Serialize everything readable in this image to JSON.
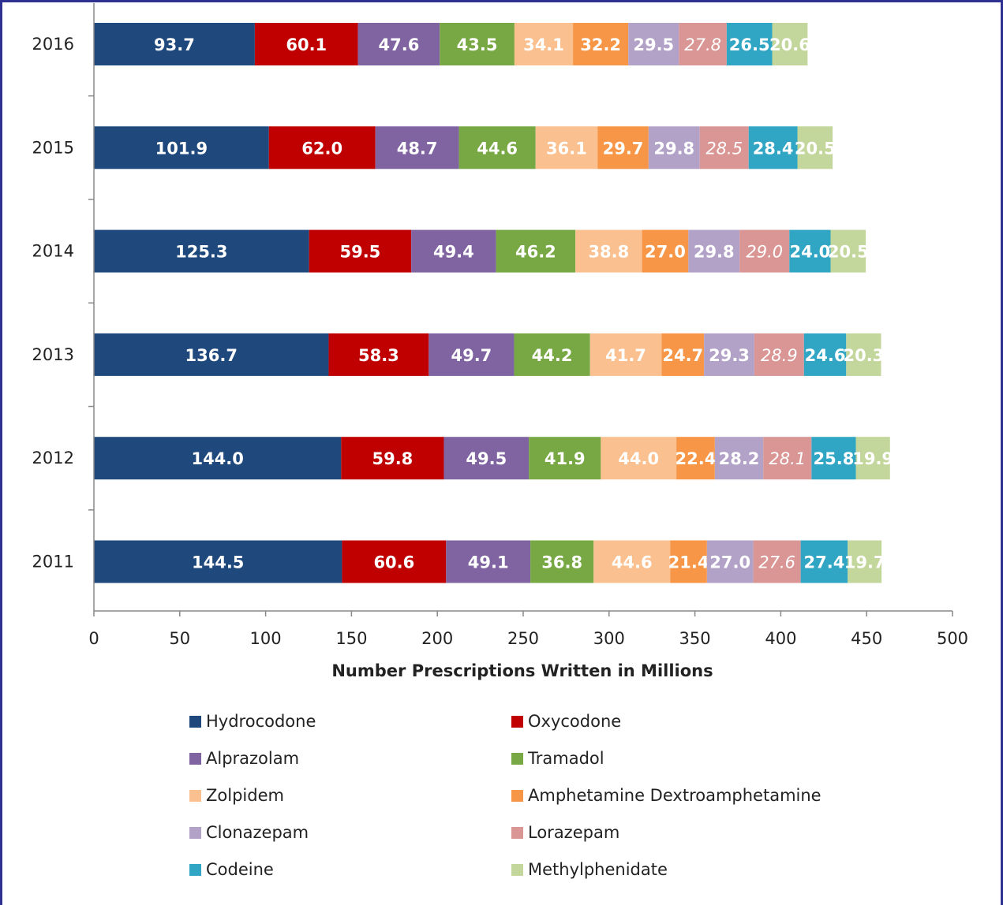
{
  "chart_data": {
    "type": "bar",
    "orientation": "horizontal",
    "stacked": true,
    "title": "",
    "xlabel": "Number Prescriptions Written in Millions",
    "ylabel": "",
    "xlim": [
      0,
      500
    ],
    "x_ticks": [
      "0",
      "50",
      "100",
      "150",
      "200",
      "250",
      "300",
      "350",
      "400",
      "450",
      "500"
    ],
    "grid": false,
    "legend_placement": "bottom",
    "categories": [
      "2016",
      "2015",
      "2014",
      "2013",
      "2012",
      "2011"
    ],
    "series": [
      {
        "name": "Hydrocodone",
        "color": "#1f497d",
        "label_color": "#ffffff",
        "italic": false,
        "values": [
          93.7,
          101.9,
          125.3,
          136.7,
          144.0,
          144.5
        ],
        "labels": [
          "93.7",
          "101.9",
          "125.3",
          "136.7",
          "144.0",
          "144.5"
        ]
      },
      {
        "name": "Oxycodone",
        "color": "#c00000",
        "label_color": "#ffffff",
        "italic": false,
        "values": [
          60.1,
          62.0,
          59.5,
          58.3,
          59.8,
          60.6
        ],
        "labels": [
          "60.1",
          "62.0",
          "59.5",
          "58.3",
          "59.8",
          "60.6"
        ]
      },
      {
        "name": "Alprazolam",
        "color": "#8064a2",
        "label_color": "#ffffff",
        "italic": false,
        "values": [
          47.6,
          48.7,
          49.4,
          49.7,
          49.5,
          49.1
        ],
        "labels": [
          "47.6",
          "48.7",
          "49.4",
          "49.7",
          "49.5",
          "49.1"
        ]
      },
      {
        "name": "Tramadol",
        "color": "#77a843",
        "label_color": "#ffffff",
        "italic": false,
        "values": [
          43.5,
          44.6,
          46.2,
          44.2,
          41.9,
          36.8
        ],
        "labels": [
          "43.5",
          "44.6",
          "46.2",
          "44.2",
          "41.9",
          "36.8"
        ]
      },
      {
        "name": "Zolpidem",
        "color": "#fac090",
        "label_color": "#ffffff",
        "italic": false,
        "values": [
          34.1,
          36.1,
          38.8,
          41.7,
          44.0,
          44.6
        ],
        "labels": [
          "34.1",
          "36.1",
          "38.8",
          "41.7",
          "44.0",
          "44.6"
        ]
      },
      {
        "name": "Amphetamine Dextroamphetamine",
        "color": "#f79646",
        "label_color": "#ffffff",
        "italic": false,
        "values": [
          32.2,
          29.7,
          27.0,
          24.7,
          22.4,
          21.4
        ],
        "labels": [
          "32.2",
          "29.7",
          "27.0",
          "24.7",
          "22.4",
          "21.4"
        ]
      },
      {
        "name": "Clonazepam",
        "color": "#b3a2c7",
        "label_color": "#ffffff",
        "italic": false,
        "values": [
          29.5,
          29.8,
          29.8,
          29.3,
          28.2,
          27.0
        ],
        "labels": [
          "29.5",
          "29.8",
          "29.8",
          "29.3",
          "28.2",
          "27.0"
        ]
      },
      {
        "name": "Lorazepam",
        "color": "#d99694",
        "label_color": "#ffffff",
        "italic": true,
        "values": [
          27.8,
          28.5,
          29.0,
          28.9,
          28.1,
          27.6
        ],
        "labels": [
          "27.8",
          "28.5",
          "29.0",
          "28.9",
          "28.1",
          "27.6"
        ]
      },
      {
        "name": "Codeine",
        "color": "#31a6c4",
        "label_color": "#ffffff",
        "italic": false,
        "values": [
          26.5,
          28.4,
          24.0,
          24.6,
          25.8,
          27.4
        ],
        "labels": [
          "26.5",
          "28.4",
          "24.0",
          "24.6",
          "25.8",
          "27.4"
        ]
      },
      {
        "name": "Methylphenidate",
        "color": "#c3d69b",
        "label_color": "#ffffff",
        "italic": false,
        "values": [
          20.6,
          20.5,
          20.5,
          20.3,
          19.9,
          19.7
        ],
        "labels": [
          "20.6",
          "20.5",
          "20.5",
          "20.3",
          "19.9",
          "19.7"
        ]
      }
    ]
  }
}
